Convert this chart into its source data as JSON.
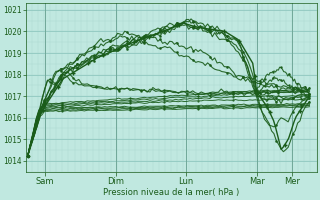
{
  "bg_color": "#c0e8e0",
  "line_color": "#1a5c1a",
  "ylabel": "Pression niveau de la mer( hPa )",
  "ylim": [
    1013.5,
    1021.3
  ],
  "yticks": [
    1014,
    1015,
    1016,
    1017,
    1018,
    1019,
    1020,
    1021
  ],
  "day_labels": [
    "Sam",
    "Dim",
    "Lun",
    "Mar",
    "Mer"
  ],
  "day_positions": [
    0.25,
    1.25,
    2.25,
    3.25,
    3.75
  ],
  "xlim": [
    -0.02,
    4.1
  ],
  "origin_x": 0.0,
  "origin_y": 1014.2,
  "grid_major_color": "#90c8c0",
  "grid_minor_color": "#a8d8d0"
}
